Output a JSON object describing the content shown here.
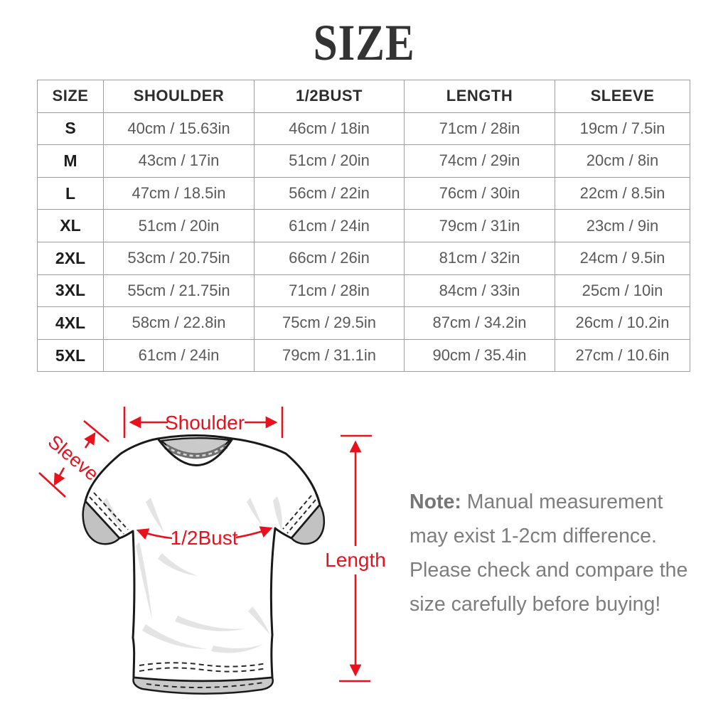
{
  "title": "SIZE",
  "table": {
    "headers": [
      "SIZE",
      "SHOULDER",
      "1/2BUST",
      "LENGTH",
      "SLEEVE"
    ],
    "rows": [
      [
        "S",
        "40cm / 15.63in",
        "46cm / 18in",
        "71cm / 28in",
        "19cm / 7.5in"
      ],
      [
        "M",
        "43cm / 17in",
        "51cm / 20in",
        "74cm / 29in",
        "20cm / 8in"
      ],
      [
        "L",
        "47cm / 18.5in",
        "56cm / 22in",
        "76cm / 30in",
        "22cm / 8.5in"
      ],
      [
        "XL",
        "51cm / 20in",
        "61cm / 24in",
        "79cm / 31in",
        "23cm / 9in"
      ],
      [
        "2XL",
        "53cm / 20.75in",
        "66cm / 26in",
        "81cm / 32in",
        "24cm / 9.5in"
      ],
      [
        "3XL",
        "55cm / 21.75in",
        "71cm / 28in",
        "84cm / 33in",
        "25cm / 10in"
      ],
      [
        "4XL",
        "58cm / 22.8in",
        "75cm / 29.5in",
        "87cm / 34.2in",
        "26cm / 10.2in"
      ],
      [
        "5XL",
        "61cm / 24in",
        "79cm / 31.1in",
        "90cm / 35.4in",
        "27cm / 10.6in"
      ]
    ]
  },
  "diagram": {
    "labels": {
      "shoulder": "Shoulder",
      "sleeve": "Sleeve",
      "bust": "1/2Bust",
      "length": "Length"
    },
    "accent_color": "#e8121d"
  },
  "note": {
    "label": "Note:",
    "text": "Manual measurement may exist 1-2cm difference. Please check and compare the size carefully before buying!"
  }
}
